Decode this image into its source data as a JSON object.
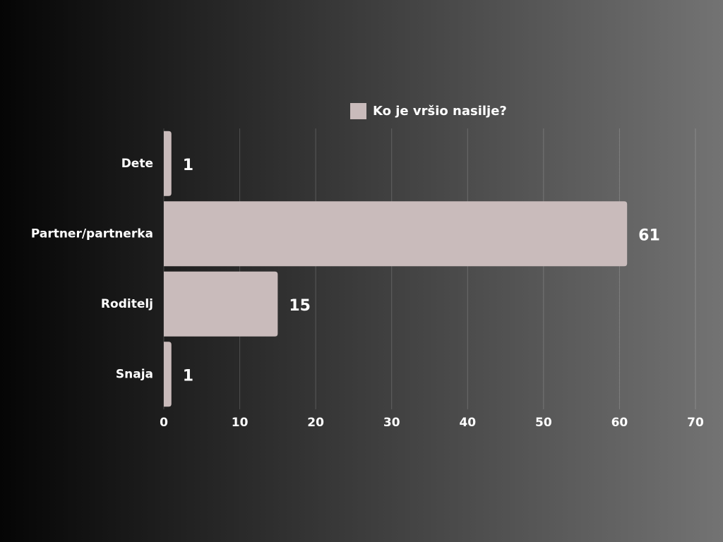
{
  "chart_data": {
    "type": "bar",
    "orientation": "horizontal",
    "categories": [
      "Dete",
      "Partner/partnerka",
      "Roditelj",
      "Snaja"
    ],
    "series": [
      {
        "name": "Ko je vršio nasilje?",
        "color": "#c9bbbb",
        "values": [
          1,
          61,
          15,
          1
        ]
      }
    ],
    "xlim": [
      0,
      70
    ],
    "xticks": [
      0,
      10,
      20,
      30,
      40,
      50,
      60,
      70
    ],
    "grid": true,
    "legend": "top"
  }
}
